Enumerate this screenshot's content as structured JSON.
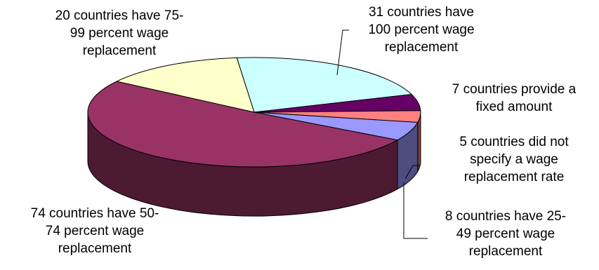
{
  "chart_data": {
    "type": "pie",
    "slices": [
      {
        "value": 31,
        "label_lines": [
          "31 countries have",
          "100 percent wage",
          "replacement"
        ],
        "color": "#ccffff"
      },
      {
        "value": 7,
        "label_lines": [
          "7 countries provide a",
          "fixed amount"
        ],
        "color": "#660066"
      },
      {
        "value": 5,
        "label_lines": [
          "5 countries did not",
          "specify a wage",
          "replacement rate"
        ],
        "color": "#ff8080"
      },
      {
        "value": 8,
        "label_lines": [
          "8 countries have 25-",
          "49 percent wage",
          "replacement"
        ],
        "color": "#9999ff"
      },
      {
        "value": 74,
        "label_lines": [
          "74 countries have 50-",
          "74 percent wage",
          "replacement"
        ],
        "color": "#993366"
      },
      {
        "value": 20,
        "label_lines": [
          "20 countries have 75-",
          "99 percent wage",
          "replacement"
        ],
        "color": "#ffffcc"
      }
    ],
    "legend": "none",
    "style": "3d"
  }
}
